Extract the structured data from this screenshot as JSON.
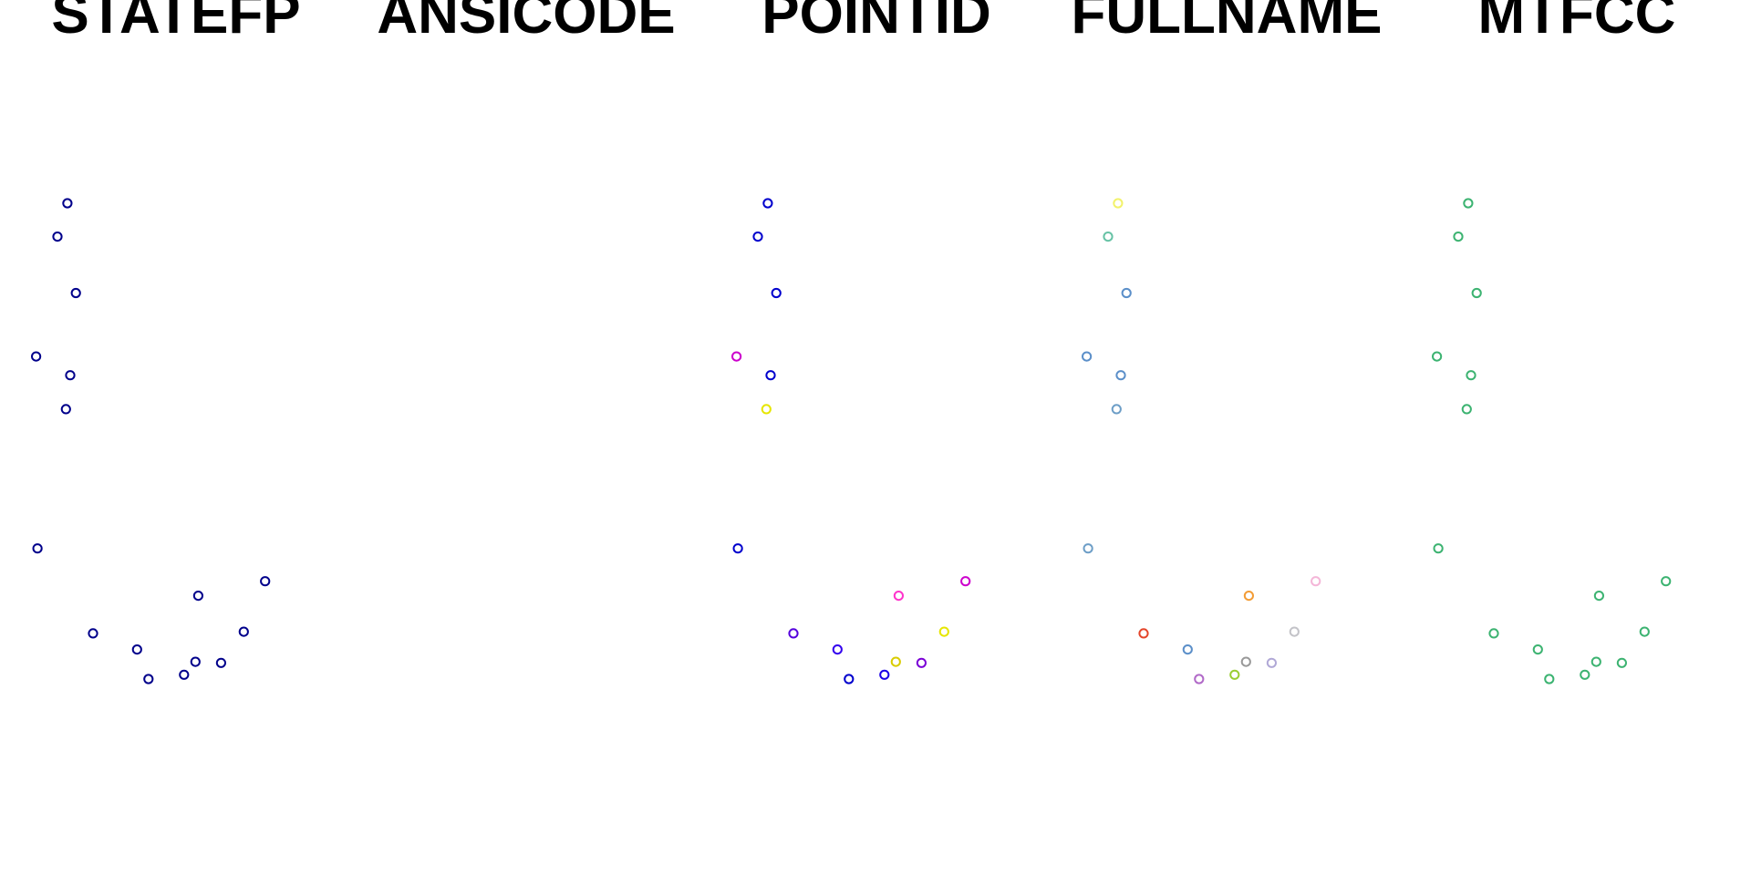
{
  "chart_data": {
    "type": "scatter",
    "panels": [
      {
        "title": "STATEFP",
        "colors": [
          "#00008b",
          "#00008b",
          "#00008b",
          "#00008b",
          "#00008b",
          "#00008b",
          "#00008b",
          "#00008b",
          "#00008b",
          "#00008b",
          "#00008b",
          "#00008b",
          "#00008b",
          "#00008b",
          "#00008b",
          "#00008b"
        ]
      },
      {
        "title": "ANSICODE",
        "colors": []
      },
      {
        "title": "POINTID",
        "colors": [
          "#0000cd",
          "#0000cd",
          "#0000cd",
          "#cc00cc",
          "#0000cd",
          "#e6e600",
          "#0000cd",
          "#ff33cc",
          "#cc00cc",
          "#5500dd",
          "#3300ee",
          "#0000cd",
          "#1a00e6",
          "#7a00d6",
          "#e6e600",
          "#d9cc00"
        ]
      },
      {
        "title": "FULLNAME",
        "colors": [
          "#f2f26b",
          "#66c2a5",
          "#5b8fc9",
          "#5b8fc9",
          "#5b8fc9",
          "#6d9ec7",
          "#6d9ec7",
          "#f39c35",
          "#f4b6d8",
          "#e4452a",
          "#5b8fc9",
          "#b16ac8",
          "#9acd32",
          "#b0a8d6",
          "#c3c3c8",
          "#999999"
        ]
      },
      {
        "title": "MTFCC",
        "colors": [
          "#3cb371",
          "#3cb371",
          "#3cb371",
          "#3cb371",
          "#3cb371",
          "#3cb371",
          "#3cb371",
          "#3cb371",
          "#3cb371",
          "#3cb371",
          "#3cb371",
          "#3cb371",
          "#3cb371",
          "#3cb371",
          "#3cb371",
          "#3cb371"
        ]
      }
    ],
    "points": [
      {
        "x": 0.115,
        "y": 0.805
      },
      {
        "x": 0.08,
        "y": 0.743
      },
      {
        "x": 0.145,
        "y": 0.638
      },
      {
        "x": 0.005,
        "y": 0.52
      },
      {
        "x": 0.125,
        "y": 0.485
      },
      {
        "x": 0.11,
        "y": 0.422
      },
      {
        "x": 0.01,
        "y": 0.163
      },
      {
        "x": 0.575,
        "y": 0.075
      },
      {
        "x": 0.81,
        "y": 0.102
      },
      {
        "x": 0.205,
        "y": 0.005
      },
      {
        "x": 0.36,
        "y": -0.025
      },
      {
        "x": 0.4,
        "y": -0.08
      },
      {
        "x": 0.525,
        "y": -0.072
      },
      {
        "x": 0.655,
        "y": -0.05
      },
      {
        "x": 0.735,
        "y": 0.008
      },
      {
        "x": 0.565,
        "y": -0.048
      }
    ]
  }
}
